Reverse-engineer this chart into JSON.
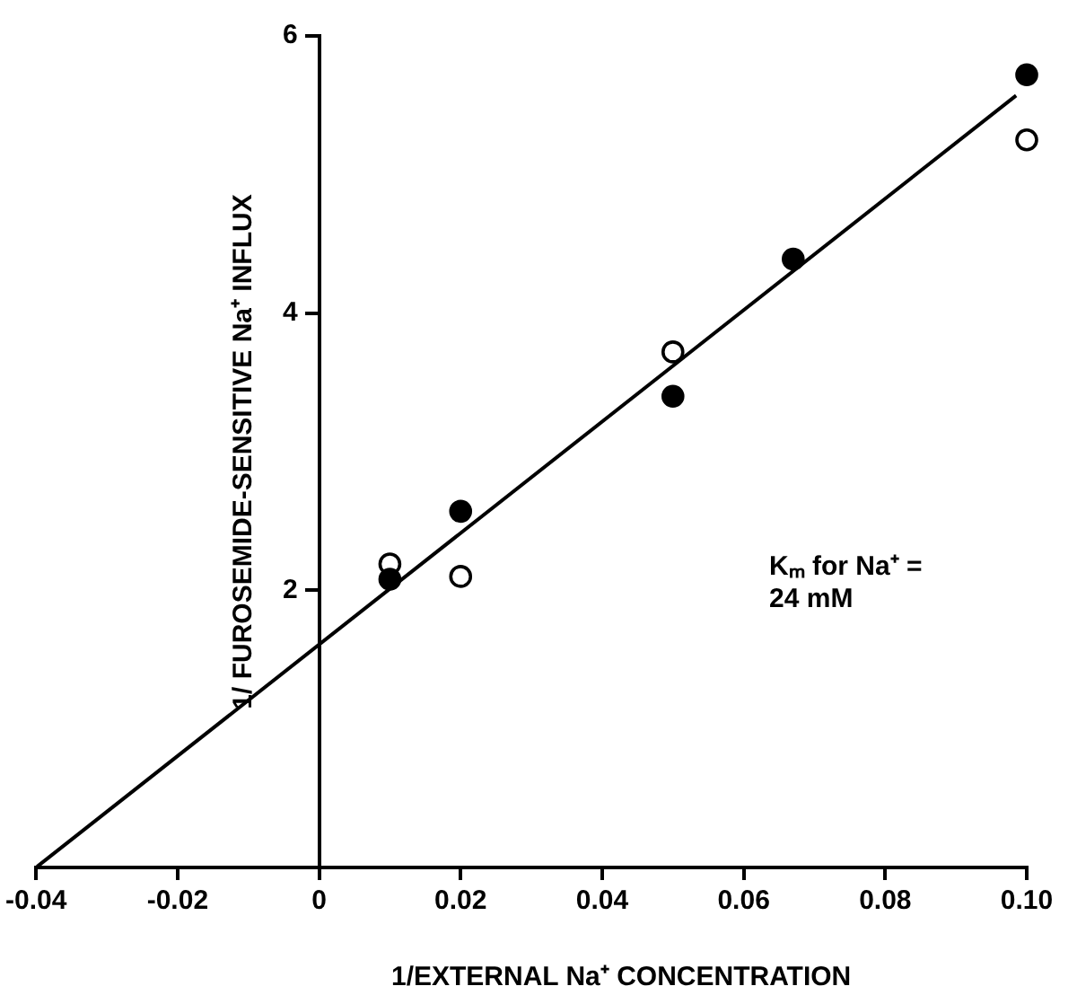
{
  "chart_data": {
    "type": "scatter",
    "xlabel": "1/EXTERNAL Na⁺ CONCENTRATION",
    "ylabel": "1/ FUROSEMIDE-SENSITIVE Na⁺ INFLUX",
    "annotations": [
      "Kₘ for Na⁺ = 24 mM"
    ],
    "xlim": [
      -0.04,
      0.1
    ],
    "xticks": [
      -0.04,
      -0.02,
      0,
      0.02,
      0.04,
      0.06,
      {
        "value": 0.08,
        "label": "0.08"
      },
      {
        "value": 0.1,
        "label": "0.10"
      }
    ],
    "ylim": [
      0,
      6
    ],
    "yticks": [
      2,
      4,
      6
    ],
    "grid": false,
    "legend": false,
    "marker": "circle",
    "series": [
      {
        "color": "#000000",
        "x": [
          0.01,
          0.02,
          0.05,
          0.067,
          0.1
        ],
        "values": [
          2.08,
          2.57,
          3.4,
          4.39,
          5.72
        ]
      },
      {
        "color": "#000000",
        "x": [
          0.01,
          0.02,
          0.05,
          0.1
        ],
        "values": [
          2.19,
          2.1,
          3.72,
          5.25
        ]
      },
      {
        "type": "line",
        "color": "#000000",
        "marker": "none",
        "x": [
          -0.04,
          0.0985
        ],
        "values": [
          0,
          5.57
        ]
      }
    ]
  }
}
